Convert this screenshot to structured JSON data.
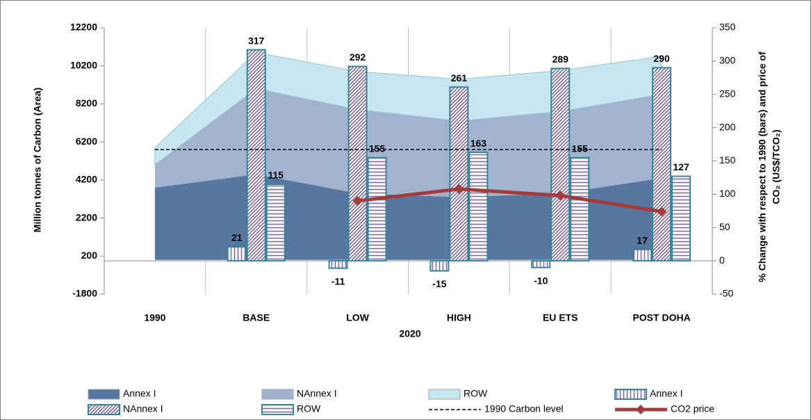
{
  "chart_data": {
    "type": "combo",
    "categories": [
      "1990",
      "BASE",
      "LOW",
      "HIGH",
      "EU ETS",
      "POST DOHA"
    ],
    "xlabel": "2020",
    "ylabel": "Million tonnes of Carbon (Area)",
    "y2label": [
      "% Change with respect to  1990 (bars) and price of",
      "CO₂ (US$/TCO₂)"
    ],
    "ylim": [
      -1800,
      12200
    ],
    "yticks": [
      -1800,
      200,
      2200,
      4200,
      6200,
      8200,
      10200,
      12200
    ],
    "y2lim": [
      -50,
      350
    ],
    "y2ticks": [
      -50,
      0,
      50,
      100,
      150,
      200,
      250,
      300,
      350
    ],
    "legend": "bottom",
    "series": [
      {
        "name": "Annex I",
        "kind": "area",
        "color": "#56779f",
        "values": [
          3800,
          4500,
          3500,
          3300,
          3500,
          4300
        ]
      },
      {
        "name": "NAnnex I",
        "kind": "area",
        "color": "#a3b3cd",
        "values": [
          1200,
          4500,
          4400,
          4000,
          4300,
          4400
        ]
      },
      {
        "name": "ROW",
        "kind": "area",
        "color": "#c8e6ef",
        "values": [
          900,
          1900,
          2000,
          2200,
          2150,
          2000
        ]
      },
      {
        "name": "Annex I",
        "kind": "bar",
        "pattern": "vertical",
        "color": "#7c6a9e",
        "edge_color": "#31859c",
        "axis": "y2",
        "values": [
          null,
          21,
          -11,
          -15,
          -10,
          17
        ]
      },
      {
        "name": "NAnnex I",
        "kind": "bar",
        "pattern": "diagonal",
        "color": "#7c6a9e",
        "edge_color": "#31859c",
        "axis": "y2",
        "values": [
          null,
          317,
          292,
          261,
          289,
          290
        ]
      },
      {
        "name": "ROW",
        "kind": "bar",
        "pattern": "horizontal",
        "color": "#7c6a9e",
        "edge_color": "#31859c",
        "axis": "y2",
        "values": [
          null,
          115,
          155,
          163,
          155,
          127
        ]
      },
      {
        "name": "1990 Carbon level",
        "kind": "line",
        "dashed": true,
        "color": "#000000",
        "values": [
          5800,
          5800,
          5800,
          5800,
          5800,
          5800
        ]
      },
      {
        "name": "CO2 price",
        "kind": "line",
        "marker": "diamond",
        "color": "#a33b3b",
        "axis": "y2",
        "values": [
          null,
          null,
          90,
          108,
          98,
          74
        ]
      }
    ]
  }
}
